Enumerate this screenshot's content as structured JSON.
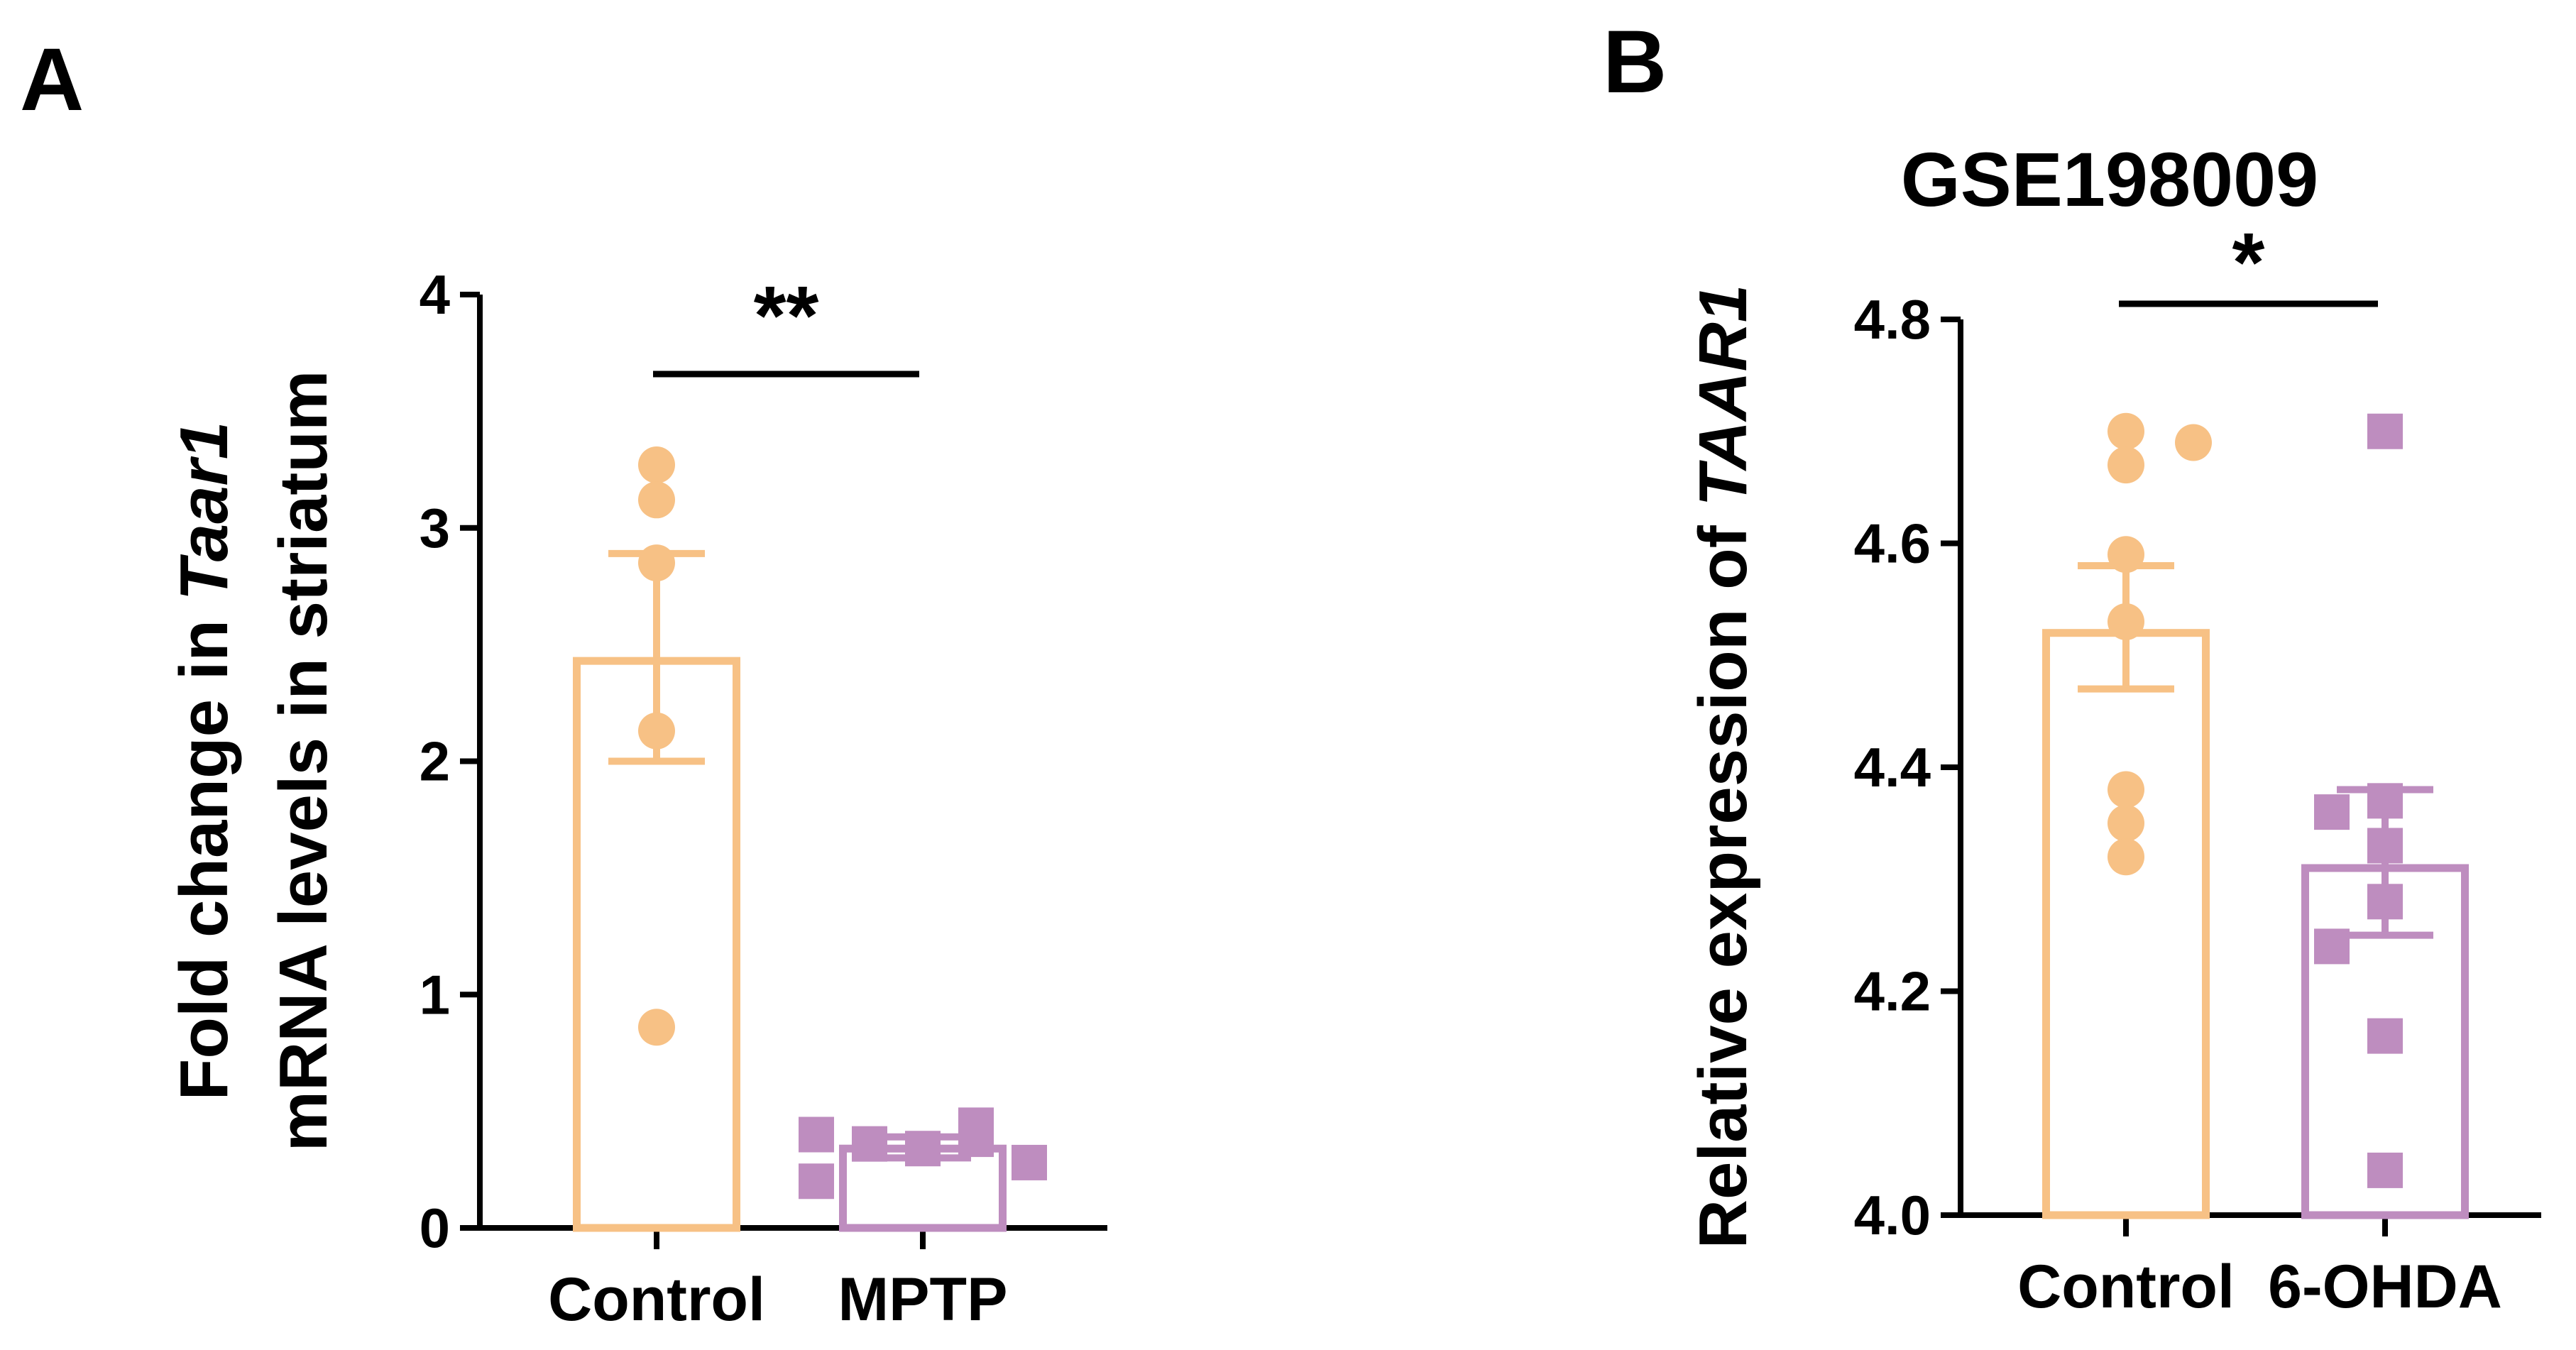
{
  "colors": {
    "control": "#F7C185",
    "treated": "#BE8DBF",
    "axis": "#000000"
  },
  "chart_data": [
    {
      "type": "bar",
      "panel": "A",
      "title": "",
      "ylabel_parts": [
        "Fold change in ",
        "Taar1",
        "mRNA levels in striatum"
      ],
      "categories": [
        "Control",
        "MPTP"
      ],
      "ylim": [
        0,
        4
      ],
      "yticks": [
        0,
        1,
        2,
        3,
        4
      ],
      "ytick_labels": [
        "0",
        "1",
        "2",
        "3",
        "4"
      ],
      "series": [
        {
          "name": "Control",
          "mean": 2.43,
          "sem_low": 2.0,
          "sem_high": 2.89,
          "points": [
            3.27,
            3.12,
            2.85,
            2.13,
            0.86
          ]
        },
        {
          "name": "MPTP",
          "mean": 0.34,
          "sem_low": 0.3,
          "sem_high": 0.39,
          "points": [
            0.4,
            0.2,
            0.36,
            0.34,
            0.38,
            0.44,
            0.28
          ]
        }
      ],
      "significance": {
        "label": "**",
        "from": 0,
        "to": 1
      }
    },
    {
      "type": "bar",
      "panel": "B",
      "title": "GSE198009",
      "ylabel_parts": [
        "Relative expression of ",
        "TAAR1"
      ],
      "categories": [
        "Control",
        "6-OHDA"
      ],
      "ylim": [
        4.0,
        4.8
      ],
      "yticks": [
        4.0,
        4.2,
        4.4,
        4.6,
        4.8
      ],
      "ytick_labels": [
        "4.0",
        "4.2",
        "4.4",
        "4.6",
        "4.8"
      ],
      "series": [
        {
          "name": "Control",
          "mean": 4.52,
          "sem_low": 4.47,
          "sem_high": 4.58,
          "points": [
            4.7,
            4.69,
            4.67,
            4.59,
            4.53,
            4.38,
            4.35,
            4.32
          ]
        },
        {
          "name": "6-OHDA",
          "mean": 4.31,
          "sem_low": 4.25,
          "sem_high": 4.38,
          "points": [
            4.7,
            4.36,
            4.37,
            4.33,
            4.28,
            4.24,
            4.16,
            4.04
          ]
        }
      ],
      "significance": {
        "label": "*",
        "from": 0,
        "to": 1
      }
    }
  ]
}
